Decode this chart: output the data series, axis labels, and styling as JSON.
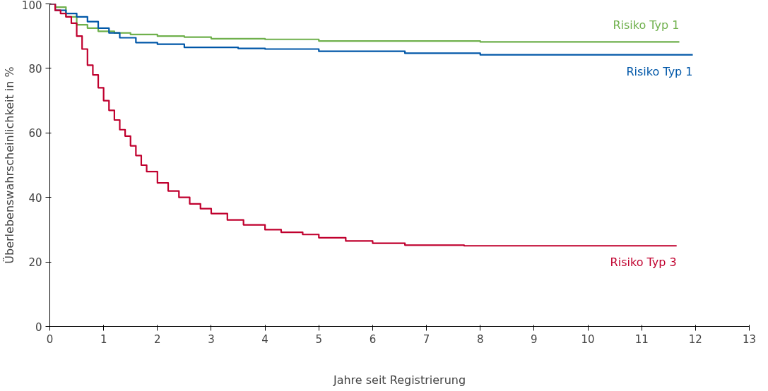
{
  "chart_data": {
    "type": "step",
    "xlabel": "Jahre seit Registrierung",
    "ylabel": "Überlebenswahrscheinlichkeit in %",
    "xlim": [
      0,
      13
    ],
    "xticks": [
      0,
      1,
      2,
      3,
      4,
      5,
      6,
      7,
      8,
      9,
      10,
      11,
      12,
      13
    ],
    "ylim": [
      0,
      100
    ],
    "yticks": [
      0,
      20,
      40,
      60,
      80,
      100
    ],
    "grid": false,
    "marker": "none",
    "line_style": "solid",
    "series": [
      {
        "name": "Risiko Typ 1",
        "color": "#6fb04c",
        "x": [
          0,
          0.1,
          0.3,
          0.5,
          0.7,
          0.9,
          1.2,
          1.5,
          2,
          2.5,
          3,
          4,
          5,
          6.5,
          8,
          11.7
        ],
        "values": [
          100,
          99,
          96,
          93.5,
          92.5,
          91.5,
          91,
          90.5,
          90,
          89.7,
          89.2,
          89,
          88.5,
          88.5,
          88.2,
          88.2
        ]
      },
      {
        "name": "Risiko Typ 1",
        "color": "#0057a8",
        "x": [
          0,
          0.1,
          0.3,
          0.5,
          0.7,
          0.9,
          1.1,
          1.3,
          1.6,
          2,
          2.5,
          3,
          3.5,
          4,
          5,
          6.6,
          8,
          11.95
        ],
        "values": [
          100,
          98,
          97,
          96,
          94.5,
          92.5,
          91,
          89.5,
          88,
          87.5,
          86.5,
          86.5,
          86.2,
          86,
          85.3,
          84.7,
          84.2,
          84.2
        ]
      },
      {
        "name": "Risiko Typ 3",
        "color": "#c0002e",
        "x": [
          0,
          0.1,
          0.2,
          0.3,
          0.4,
          0.5,
          0.6,
          0.7,
          0.8,
          0.9,
          1,
          1.1,
          1.2,
          1.3,
          1.4,
          1.5,
          1.6,
          1.7,
          1.8,
          2,
          2.2,
          2.4,
          2.6,
          2.8,
          3,
          3.3,
          3.6,
          4,
          4.3,
          4.7,
          5,
          5.5,
          6,
          6.6,
          7.7,
          11.65
        ],
        "values": [
          100,
          98,
          97,
          96,
          94,
          90,
          86,
          81,
          78,
          74,
          70,
          67,
          64,
          61,
          59,
          56,
          53,
          50,
          48,
          44.5,
          42,
          40,
          38,
          36.5,
          35,
          33,
          31.5,
          30,
          29.2,
          28.5,
          27.5,
          26.5,
          25.8,
          25.2,
          25,
          25
        ]
      }
    ]
  }
}
